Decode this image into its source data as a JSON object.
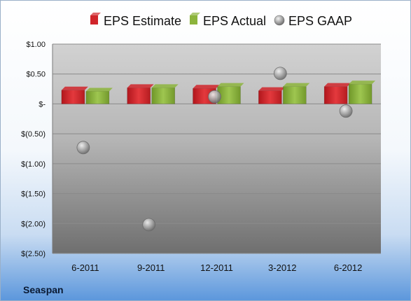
{
  "company": "Seaspan",
  "colors": {
    "estimate": "#d0252a",
    "actual": "#8cb43c",
    "gaap": "#b4b4b4"
  },
  "chart_data": {
    "type": "bar",
    "title": "",
    "xlabel": "",
    "ylabel": "",
    "categories": [
      "6-2011",
      "9-2011",
      "12-2011",
      "3-2012",
      "6-2012"
    ],
    "series": [
      {
        "name": "EPS Estimate",
        "kind": "bar",
        "values": [
          0.23,
          0.27,
          0.26,
          0.22,
          0.29
        ]
      },
      {
        "name": "EPS Actual",
        "kind": "bar",
        "values": [
          0.21,
          0.27,
          0.29,
          0.29,
          0.33
        ]
      },
      {
        "name": "EPS GAAP",
        "kind": "scatter",
        "values": [
          -0.73,
          -2.02,
          0.12,
          0.51,
          -0.12
        ]
      }
    ],
    "ylim": [
      -2.5,
      1.0
    ],
    "yticks": [
      1.0,
      0.5,
      0,
      -0.5,
      -1.0,
      -1.5,
      -2.0,
      -2.5
    ],
    "ytick_labels": [
      "$1.00",
      "$0.50",
      "$-",
      "$(0.50)",
      "$(1.00)",
      "$(1.50)",
      "$(2.00)",
      "$(2.50)"
    ],
    "grid": true,
    "legend": "top"
  }
}
